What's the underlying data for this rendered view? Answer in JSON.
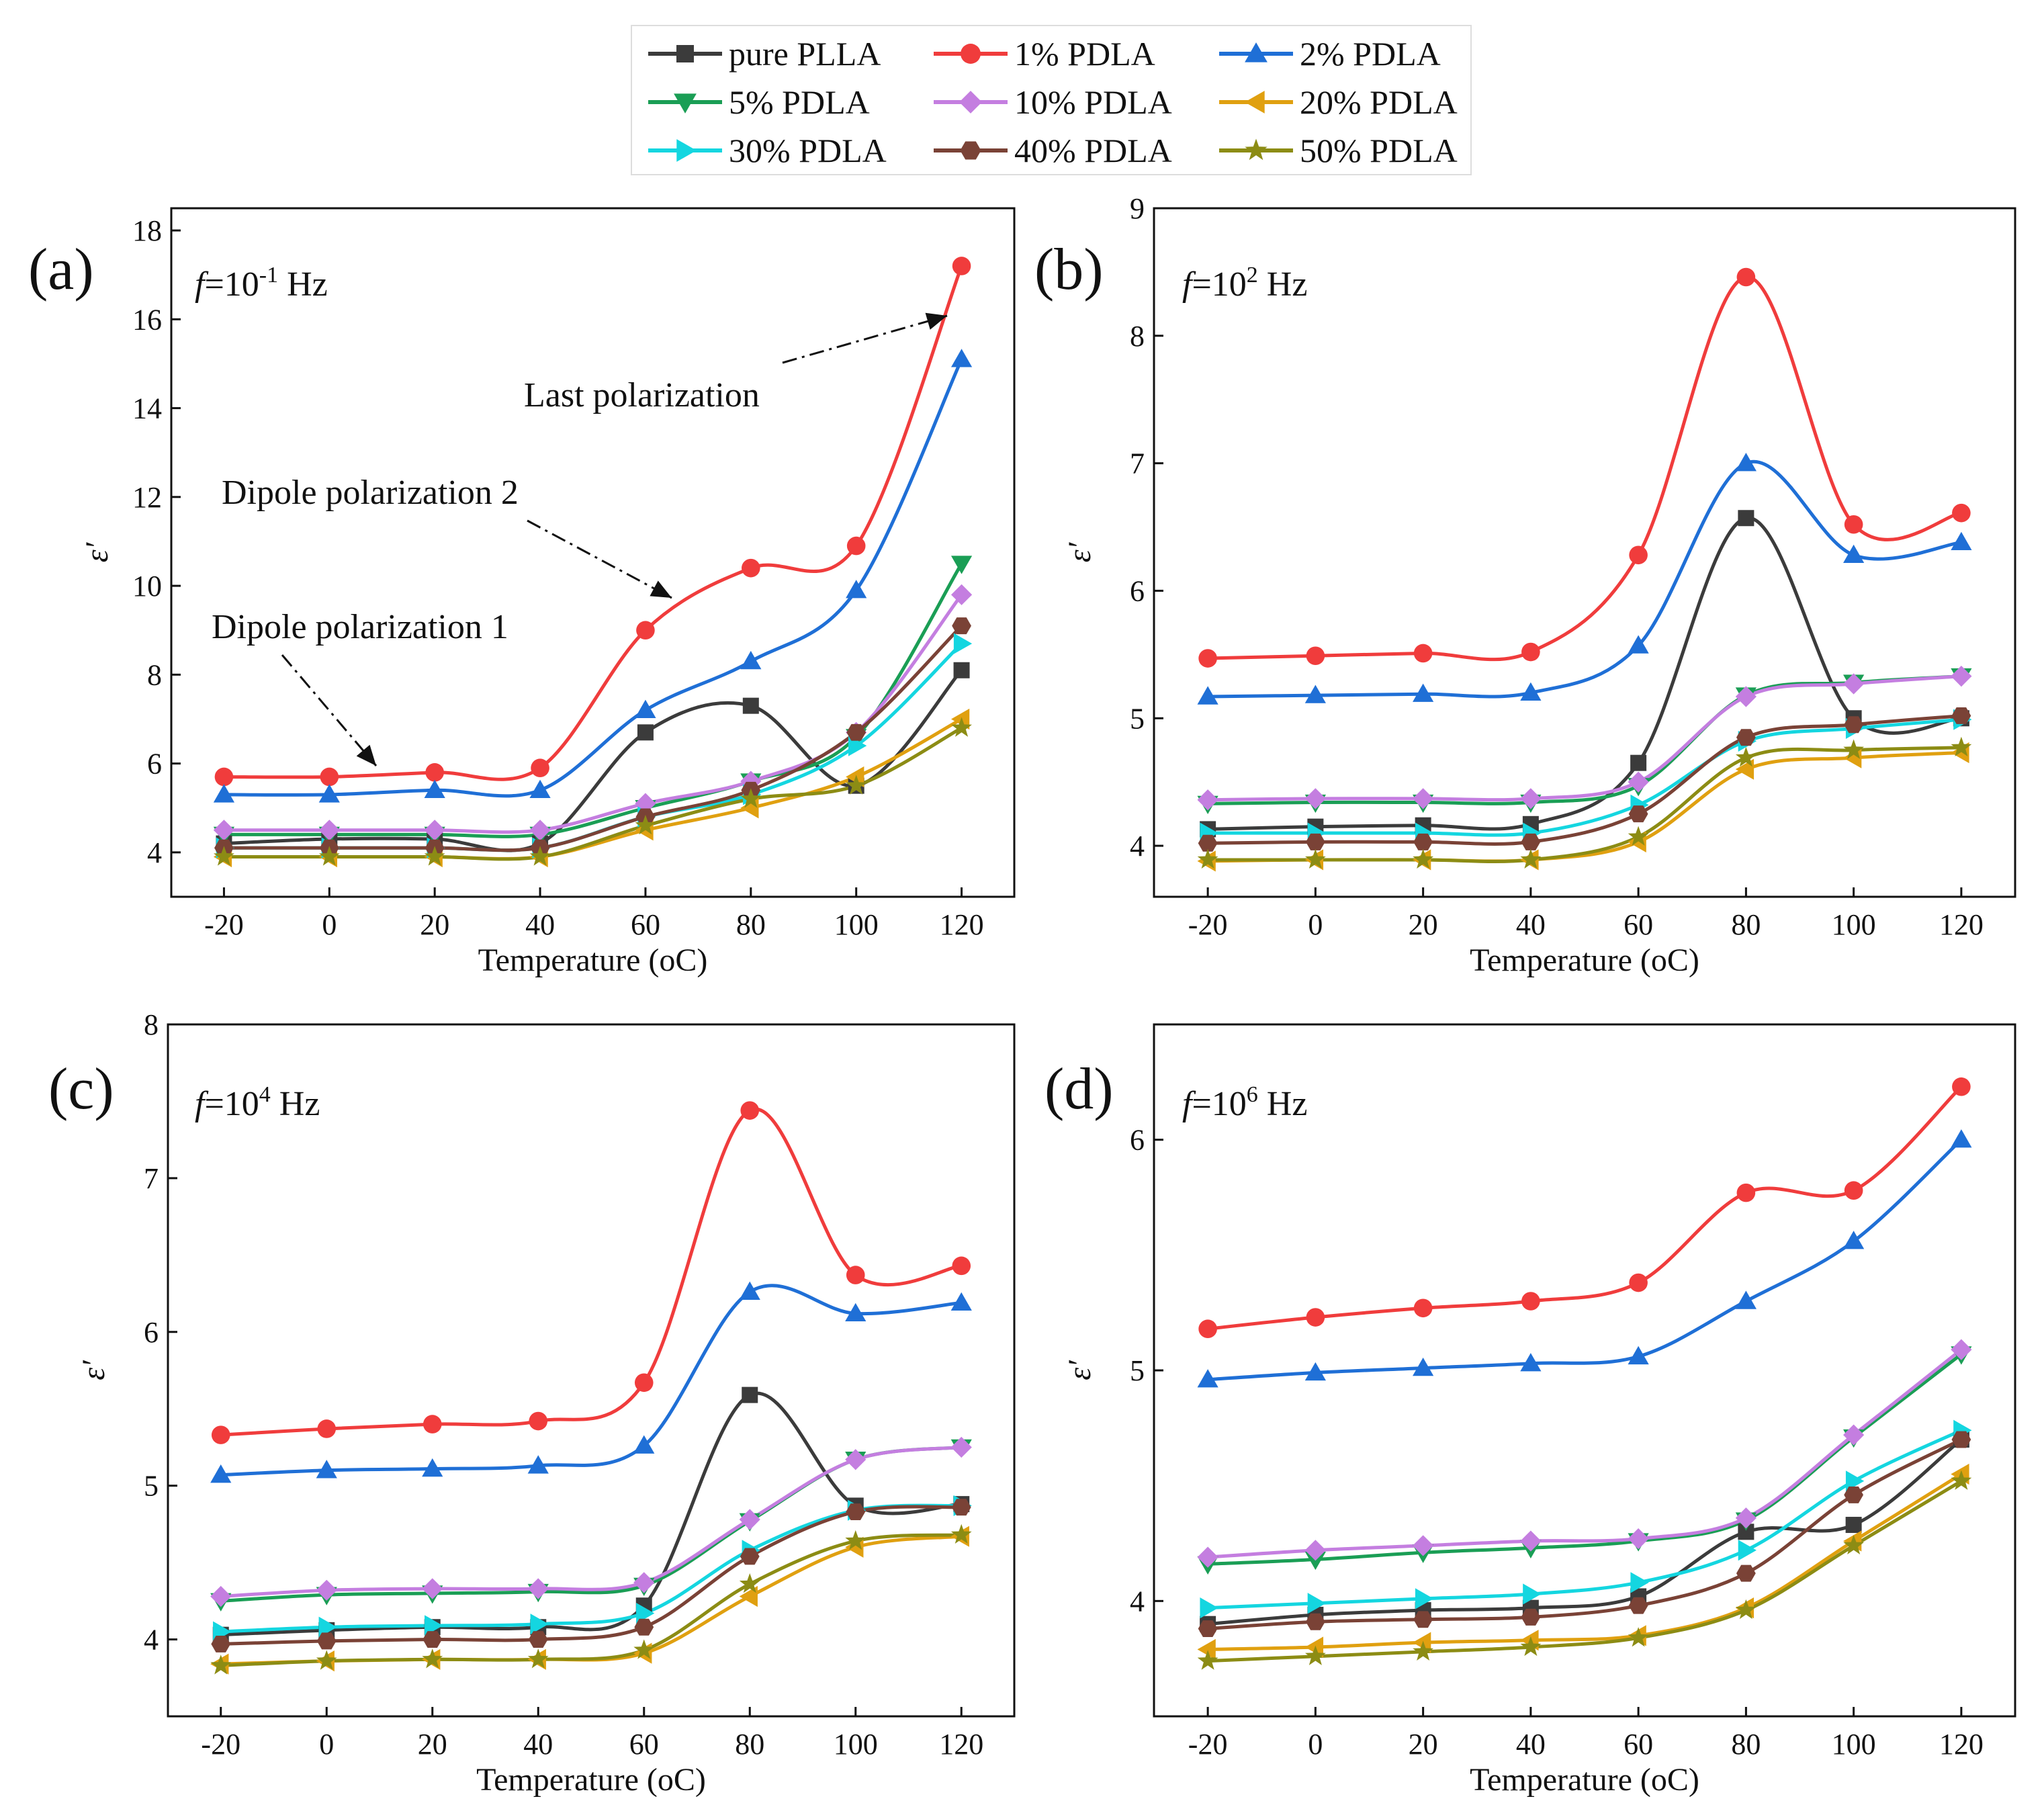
{
  "legend": {
    "entries": [
      {
        "label": "pure PLLA",
        "color": "#3b3b3b",
        "marker": "square"
      },
      {
        "label": "1%   PDLA",
        "color": "#f03c3c",
        "marker": "circle"
      },
      {
        "label": "2%  PDLA",
        "color": "#1f6fd6",
        "marker": "triangle-up"
      },
      {
        "label": "5%   PDLA",
        "color": "#1a9e55",
        "marker": "triangle-down"
      },
      {
        "label": "10%  PDLA",
        "color": "#c47ee0",
        "marker": "diamond"
      },
      {
        "label": "20% PDLA",
        "color": "#e0a010",
        "marker": "triangle-left"
      },
      {
        "label": "30% PDLA",
        "color": "#14d6e0",
        "marker": "triangle-right"
      },
      {
        "label": "40%  PDLA",
        "color": "#7a4236",
        "marker": "hexagon"
      },
      {
        "label": "50% PDLA",
        "color": "#8c8c14",
        "marker": "star"
      }
    ]
  },
  "chart_data": [
    {
      "type": "line",
      "panel": "(a)",
      "freq_prefix": "f",
      "freq_mid": "=10",
      "freq_exp": "-1",
      "freq_unit": " Hz",
      "x": [
        -20,
        0,
        20,
        40,
        60,
        80,
        100,
        120
      ],
      "xlim": [
        -30,
        130
      ],
      "ylim": [
        3.0,
        18.5
      ],
      "xticks": [
        -20,
        0,
        20,
        40,
        60,
        80,
        100,
        120
      ],
      "yticks": [
        4,
        6,
        8,
        10,
        12,
        14,
        16,
        18
      ],
      "xlabel": "Temperature (oC)",
      "ylabel": "ε′",
      "series": [
        {
          "name": "pure PLLA",
          "values": [
            4.2,
            4.3,
            4.3,
            4.2,
            6.7,
            7.3,
            5.5,
            8.1
          ]
        },
        {
          "name": "1%   PDLA",
          "values": [
            5.7,
            5.7,
            5.8,
            5.9,
            9.0,
            10.4,
            10.9,
            17.2
          ]
        },
        {
          "name": "2%  PDLA",
          "values": [
            5.3,
            5.3,
            5.4,
            5.4,
            7.2,
            8.3,
            9.9,
            15.1
          ]
        },
        {
          "name": "5%   PDLA",
          "values": [
            4.4,
            4.4,
            4.4,
            4.4,
            5.0,
            5.6,
            6.6,
            10.5
          ]
        },
        {
          "name": "10%  PDLA",
          "values": [
            4.5,
            4.5,
            4.5,
            4.5,
            5.1,
            5.6,
            6.7,
            9.8
          ]
        },
        {
          "name": "20% PDLA",
          "values": [
            3.9,
            3.9,
            3.9,
            3.9,
            4.5,
            5.0,
            5.7,
            7.0
          ]
        },
        {
          "name": "30% PDLA",
          "values": [
            4.1,
            4.1,
            4.1,
            4.1,
            4.8,
            5.3,
            6.4,
            8.7
          ]
        },
        {
          "name": "40%  PDLA",
          "values": [
            4.1,
            4.1,
            4.1,
            4.1,
            4.8,
            5.4,
            6.7,
            9.1
          ]
        },
        {
          "name": "50% PDLA",
          "values": [
            3.9,
            3.9,
            3.9,
            3.9,
            4.6,
            5.2,
            5.5,
            6.8
          ]
        }
      ],
      "annotations": [
        {
          "text": "Last polarization"
        },
        {
          "text": "Dipole polarization 2"
        },
        {
          "text": "Dipole polarization 1"
        }
      ]
    },
    {
      "type": "line",
      "panel": "(b)",
      "freq_prefix": "f",
      "freq_mid": "=10",
      "freq_exp": "2",
      "freq_unit": " Hz",
      "x": [
        -20,
        0,
        20,
        40,
        60,
        80,
        100,
        120
      ],
      "xlim": [
        -30,
        130
      ],
      "ylim": [
        3.6,
        9.0
      ],
      "xticks": [
        -20,
        0,
        20,
        40,
        60,
        80,
        100,
        120
      ],
      "yticks": [
        4,
        5,
        6,
        7,
        8,
        9
      ],
      "xlabel": "Temperature (oC)",
      "ylabel": "ε′",
      "series": [
        {
          "name": "pure PLLA",
          "values": [
            4.13,
            4.15,
            4.16,
            4.17,
            4.65,
            6.57,
            5.0,
            5.0
          ]
        },
        {
          "name": "1%   PDLA",
          "values": [
            5.47,
            5.49,
            5.51,
            5.52,
            6.28,
            8.46,
            6.52,
            6.61
          ]
        },
        {
          "name": "2%  PDLA",
          "values": [
            5.17,
            5.18,
            5.19,
            5.2,
            5.57,
            7.0,
            6.28,
            6.38
          ]
        },
        {
          "name": "5%   PDLA",
          "values": [
            4.33,
            4.34,
            4.34,
            4.34,
            4.47,
            5.18,
            5.28,
            5.33
          ]
        },
        {
          "name": "10%  PDLA",
          "values": [
            4.36,
            4.37,
            4.37,
            4.37,
            4.5,
            5.17,
            5.27,
            5.33
          ]
        },
        {
          "name": "20% PDLA",
          "values": [
            3.88,
            3.89,
            3.89,
            3.89,
            4.03,
            4.6,
            4.69,
            4.73
          ]
        },
        {
          "name": "30% PDLA",
          "values": [
            4.1,
            4.1,
            4.1,
            4.1,
            4.32,
            4.82,
            4.92,
            4.99
          ]
        },
        {
          "name": "40%  PDLA",
          "values": [
            4.02,
            4.03,
            4.03,
            4.03,
            4.25,
            4.85,
            4.95,
            5.02
          ]
        },
        {
          "name": "50% PDLA",
          "values": [
            3.89,
            3.89,
            3.89,
            3.89,
            4.07,
            4.69,
            4.75,
            4.77
          ]
        }
      ]
    },
    {
      "type": "line",
      "panel": "(c)",
      "freq_prefix": "f",
      "freq_mid": "=10",
      "freq_exp": "4",
      "freq_unit": " Hz",
      "x": [
        -20,
        0,
        20,
        40,
        60,
        80,
        100,
        120
      ],
      "xlim": [
        -30,
        130
      ],
      "ylim": [
        3.5,
        8.0
      ],
      "xticks": [
        -20,
        0,
        20,
        40,
        60,
        80,
        100,
        120
      ],
      "yticks": [
        4,
        5,
        6,
        7,
        8
      ],
      "xlabel": "Temperature (oC)",
      "ylabel": "ε′",
      "series": [
        {
          "name": "pure PLLA",
          "values": [
            4.03,
            4.06,
            4.08,
            4.08,
            4.22,
            5.59,
            4.87,
            4.88
          ]
        },
        {
          "name": "1%   PDLA",
          "values": [
            5.33,
            5.37,
            5.4,
            5.42,
            5.67,
            7.44,
            6.37,
            6.43
          ]
        },
        {
          "name": "2%  PDLA",
          "values": [
            5.07,
            5.1,
            5.11,
            5.13,
            5.26,
            6.26,
            6.12,
            6.19
          ]
        },
        {
          "name": "5%   PDLA",
          "values": [
            4.25,
            4.29,
            4.3,
            4.31,
            4.35,
            4.77,
            5.17,
            5.25
          ]
        },
        {
          "name": "10%  PDLA",
          "values": [
            4.28,
            4.32,
            4.33,
            4.33,
            4.37,
            4.78,
            5.17,
            5.25
          ]
        },
        {
          "name": "20% PDLA",
          "values": [
            3.84,
            3.86,
            3.87,
            3.87,
            3.91,
            4.28,
            4.6,
            4.67
          ]
        },
        {
          "name": "30% PDLA",
          "values": [
            4.05,
            4.08,
            4.09,
            4.1,
            4.17,
            4.58,
            4.84,
            4.87
          ]
        },
        {
          "name": "40%  PDLA",
          "values": [
            3.97,
            3.99,
            4.0,
            4.0,
            4.08,
            4.54,
            4.83,
            4.86
          ]
        },
        {
          "name": "50% PDLA",
          "values": [
            3.83,
            3.86,
            3.87,
            3.87,
            3.93,
            4.36,
            4.64,
            4.68
          ]
        }
      ]
    },
    {
      "type": "line",
      "panel": "(d)",
      "freq_prefix": "f",
      "freq_mid": "=10",
      "freq_exp": "6",
      "freq_unit": " Hz",
      "x": [
        -20,
        0,
        20,
        40,
        60,
        80,
        100,
        120
      ],
      "xlim": [
        -30,
        130
      ],
      "ylim": [
        3.5,
        6.5
      ],
      "xticks": [
        -20,
        0,
        20,
        40,
        60,
        80,
        100,
        120
      ],
      "yticks": [
        4,
        5,
        6
      ],
      "xlabel": "Temperature (oC)",
      "ylabel": "ε′",
      "series": [
        {
          "name": "pure PLLA",
          "values": [
            3.9,
            3.94,
            3.96,
            3.97,
            4.02,
            4.3,
            4.33,
            4.7
          ]
        },
        {
          "name": "1%   PDLA",
          "values": [
            5.18,
            5.23,
            5.27,
            5.3,
            5.38,
            5.77,
            5.78,
            6.23
          ]
        },
        {
          "name": "2%  PDLA",
          "values": [
            4.96,
            4.99,
            5.01,
            5.03,
            5.06,
            5.3,
            5.56,
            6.0
          ]
        },
        {
          "name": "5%   PDLA",
          "values": [
            4.16,
            4.18,
            4.21,
            4.23,
            4.26,
            4.35,
            4.71,
            5.07
          ]
        },
        {
          "name": "10%  PDLA",
          "values": [
            4.19,
            4.22,
            4.24,
            4.26,
            4.27,
            4.36,
            4.72,
            5.09
          ]
        },
        {
          "name": "20% PDLA",
          "values": [
            3.79,
            3.8,
            3.82,
            3.83,
            3.85,
            3.97,
            4.26,
            4.55
          ]
        },
        {
          "name": "30% PDLA",
          "values": [
            3.97,
            3.99,
            4.01,
            4.03,
            4.08,
            4.22,
            4.52,
            4.74
          ]
        },
        {
          "name": "40%  PDLA",
          "values": [
            3.88,
            3.91,
            3.92,
            3.93,
            3.98,
            4.12,
            4.46,
            4.7
          ]
        },
        {
          "name": "50% PDLA",
          "values": [
            3.74,
            3.76,
            3.78,
            3.8,
            3.84,
            3.96,
            4.24,
            4.52
          ]
        }
      ]
    }
  ]
}
